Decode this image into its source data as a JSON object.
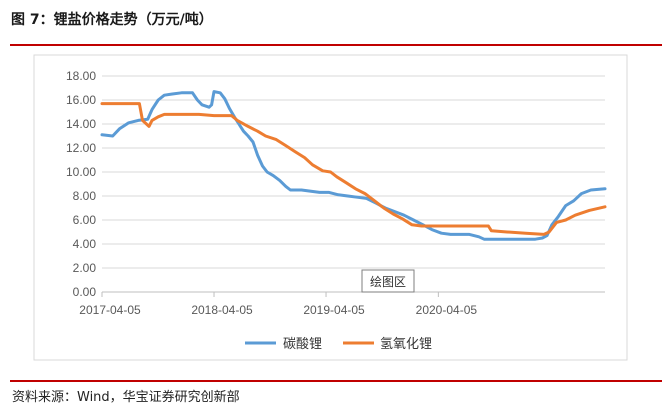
{
  "figure": {
    "title": "图 7：锂盐价格走势（万元/吨）",
    "source": "资料来源：Wind，华宝证券研究创新部"
  },
  "chart_data": {
    "type": "line",
    "title": "",
    "xlabel": "",
    "ylabel": "",
    "ylim": [
      0,
      18
    ],
    "y_ticks": [
      "18.00",
      "16.00",
      "14.00",
      "12.00",
      "10.00",
      "8.00",
      "6.00",
      "4.00",
      "2.00",
      "0.00"
    ],
    "x_ticks": [
      "2017-04-05",
      "2018-04-05",
      "2019-04-05",
      "2020-04-05"
    ],
    "xlim": [
      "2017-04-05",
      "2021-09-30"
    ],
    "grid": true,
    "legend": "bottom",
    "overlay_label": "绘图区",
    "series": [
      {
        "name": "碳酸锂",
        "color": "#5b9bd5",
        "points": [
          [
            "2017-04-05",
            13.1
          ],
          [
            "2017-05-10",
            13.0
          ],
          [
            "2017-06-01",
            13.6
          ],
          [
            "2017-07-01",
            14.1
          ],
          [
            "2017-08-01",
            14.3
          ],
          [
            "2017-09-01",
            14.4
          ],
          [
            "2017-09-15",
            15.2
          ],
          [
            "2017-10-05",
            16.0
          ],
          [
            "2017-10-25",
            16.4
          ],
          [
            "2017-11-20",
            16.5
          ],
          [
            "2017-12-20",
            16.6
          ],
          [
            "2018-01-25",
            16.6
          ],
          [
            "2018-02-10",
            16.0
          ],
          [
            "2018-02-25",
            15.6
          ],
          [
            "2018-03-20",
            15.4
          ],
          [
            "2018-03-28",
            15.6
          ],
          [
            "2018-04-05",
            16.7
          ],
          [
            "2018-04-25",
            16.6
          ],
          [
            "2018-05-10",
            16.1
          ],
          [
            "2018-05-25",
            15.3
          ],
          [
            "2018-06-10",
            14.6
          ],
          [
            "2018-06-25",
            14.0
          ],
          [
            "2018-07-10",
            13.4
          ],
          [
            "2018-07-25",
            13.0
          ],
          [
            "2018-08-10",
            12.5
          ],
          [
            "2018-08-25",
            11.4
          ],
          [
            "2018-09-10",
            10.5
          ],
          [
            "2018-09-25",
            10.0
          ],
          [
            "2018-10-15",
            9.7
          ],
          [
            "2018-11-05",
            9.3
          ],
          [
            "2018-11-25",
            8.8
          ],
          [
            "2018-12-10",
            8.5
          ],
          [
            "2019-01-15",
            8.5
          ],
          [
            "2019-02-15",
            8.4
          ],
          [
            "2019-03-15",
            8.3
          ],
          [
            "2019-04-15",
            8.3
          ],
          [
            "2019-05-15",
            8.1
          ],
          [
            "2019-06-15",
            8.0
          ],
          [
            "2019-07-15",
            7.9
          ],
          [
            "2019-08-15",
            7.8
          ],
          [
            "2019-09-15",
            7.4
          ],
          [
            "2019-10-15",
            7.0
          ],
          [
            "2019-11-15",
            6.7
          ],
          [
            "2019-12-15",
            6.4
          ],
          [
            "2020-01-15",
            6.0
          ],
          [
            "2020-02-15",
            5.6
          ],
          [
            "2020-03-15",
            5.2
          ],
          [
            "2020-04-15",
            4.9
          ],
          [
            "2020-05-15",
            4.8
          ],
          [
            "2020-06-15",
            4.8
          ],
          [
            "2020-07-15",
            4.8
          ],
          [
            "2020-08-15",
            4.6
          ],
          [
            "2020-09-01",
            4.4
          ],
          [
            "2020-10-15",
            4.4
          ],
          [
            "2020-12-15",
            4.4
          ],
          [
            "2021-02-15",
            4.4
          ],
          [
            "2021-03-10",
            4.5
          ],
          [
            "2021-03-25",
            4.7
          ],
          [
            "2021-04-10",
            5.6
          ],
          [
            "2021-05-01",
            6.3
          ],
          [
            "2021-05-25",
            7.2
          ],
          [
            "2021-06-20",
            7.6
          ],
          [
            "2021-07-15",
            8.2
          ],
          [
            "2021-08-15",
            8.5
          ],
          [
            "2021-09-30",
            8.6
          ]
        ]
      },
      {
        "name": "氢氧化锂",
        "color": "#ed7d31",
        "points": [
          [
            "2017-04-05",
            15.7
          ],
          [
            "2017-07-25",
            15.7
          ],
          [
            "2017-08-05",
            15.7
          ],
          [
            "2017-08-15",
            14.3
          ],
          [
            "2017-09-05",
            13.8
          ],
          [
            "2017-09-15",
            14.3
          ],
          [
            "2017-10-05",
            14.6
          ],
          [
            "2017-10-25",
            14.8
          ],
          [
            "2017-12-15",
            14.8
          ],
          [
            "2018-02-15",
            14.8
          ],
          [
            "2018-04-05",
            14.7
          ],
          [
            "2018-05-10",
            14.7
          ],
          [
            "2018-06-01",
            14.7
          ],
          [
            "2018-06-20",
            14.3
          ],
          [
            "2018-07-25",
            13.8
          ],
          [
            "2018-08-25",
            13.4
          ],
          [
            "2018-09-20",
            13.0
          ],
          [
            "2018-10-25",
            12.7
          ],
          [
            "2018-11-25",
            12.2
          ],
          [
            "2018-12-25",
            11.7
          ],
          [
            "2019-01-25",
            11.2
          ],
          [
            "2019-02-20",
            10.6
          ],
          [
            "2019-03-25",
            10.1
          ],
          [
            "2019-04-20",
            10.0
          ],
          [
            "2019-05-10",
            9.6
          ],
          [
            "2019-06-10",
            9.1
          ],
          [
            "2019-07-10",
            8.6
          ],
          [
            "2019-08-10",
            8.2
          ],
          [
            "2019-09-10",
            7.6
          ],
          [
            "2019-10-10",
            7.0
          ],
          [
            "2019-11-10",
            6.5
          ],
          [
            "2019-12-10",
            6.1
          ],
          [
            "2020-01-10",
            5.6
          ],
          [
            "2020-02-10",
            5.5
          ],
          [
            "2020-03-15",
            5.5
          ],
          [
            "2020-06-15",
            5.5
          ],
          [
            "2020-09-15",
            5.5
          ],
          [
            "2020-09-25",
            5.1
          ],
          [
            "2020-11-15",
            5.0
          ],
          [
            "2021-01-15",
            4.9
          ],
          [
            "2021-03-15",
            4.8
          ],
          [
            "2021-04-01",
            5.0
          ],
          [
            "2021-04-25",
            5.8
          ],
          [
            "2021-05-25",
            6.0
          ],
          [
            "2021-06-25",
            6.4
          ],
          [
            "2021-08-10",
            6.8
          ],
          [
            "2021-09-30",
            7.1
          ]
        ]
      }
    ]
  }
}
